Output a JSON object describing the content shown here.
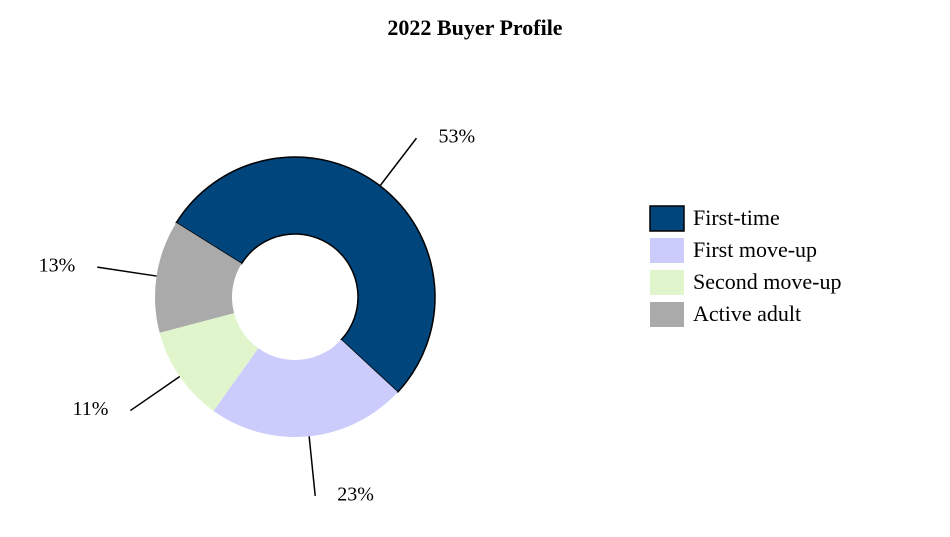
{
  "chart_data": {
    "type": "donut",
    "title": "2022 Buyer Profile",
    "categories": [
      "First-time",
      "First move-up",
      "Second move-up",
      "Active adult"
    ],
    "values": [
      53,
      23,
      11,
      13
    ],
    "value_labels": [
      "53%",
      "23%",
      "11%",
      "13%"
    ],
    "colors": [
      "#00457c",
      "#ccccfc",
      "#e0f5cc",
      "#aaaaaa"
    ],
    "legend": "right"
  }
}
